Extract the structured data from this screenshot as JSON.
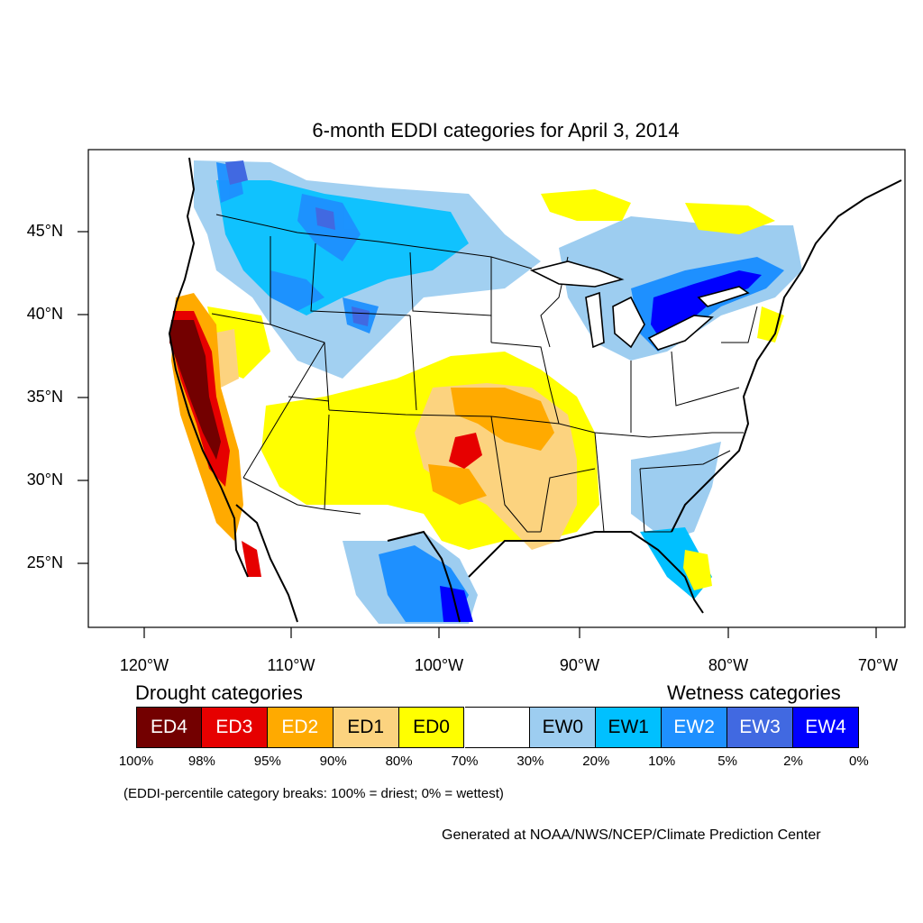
{
  "title": "6-month EDDI categories for April 3, 2014",
  "lat_labels": [
    "45°N",
    "40°N",
    "35°N",
    "30°N",
    "25°N"
  ],
  "lon_labels": [
    "120°W",
    "110°W",
    "100°W",
    "90°W",
    "80°W",
    "70°W"
  ],
  "legend": {
    "drought_heading": "Drought categories",
    "wetness_heading": "Wetness categories",
    "categories": [
      {
        "label": "ED4",
        "color": "#730000",
        "text_color": "#ffffff"
      },
      {
        "label": "ED3",
        "color": "#e60000",
        "text_color": "#ffffff"
      },
      {
        "label": "ED2",
        "color": "#ffaa00",
        "text_color": "#ffffff"
      },
      {
        "label": "ED1",
        "color": "#fcd37f",
        "text_color": "#000000"
      },
      {
        "label": "ED0",
        "color": "#ffff00",
        "text_color": "#000000"
      },
      {
        "label": "",
        "color": "#ffffff",
        "text_color": "#000000"
      },
      {
        "label": "EW0",
        "color": "#9dcdf0",
        "text_color": "#000000"
      },
      {
        "label": "EW1",
        "color": "#00c0ff",
        "text_color": "#000000"
      },
      {
        "label": "EW2",
        "color": "#1e90ff",
        "text_color": "#ffffff"
      },
      {
        "label": "EW3",
        "color": "#4169e1",
        "text_color": "#ffffff"
      },
      {
        "label": "EW4",
        "color": "#0000ff",
        "text_color": "#ffffff"
      }
    ],
    "ticks": [
      "100%",
      "98%",
      "95%",
      "90%",
      "80%",
      "70%",
      "30%",
      "20%",
      "10%",
      "5%",
      "2%",
      "0%"
    ],
    "note": "(EDDI-percentile category breaks: 100% = driest; 0% = wettest)"
  },
  "credit": "Generated at NOAA/NWS/NCEP/Climate Prediction Center"
}
